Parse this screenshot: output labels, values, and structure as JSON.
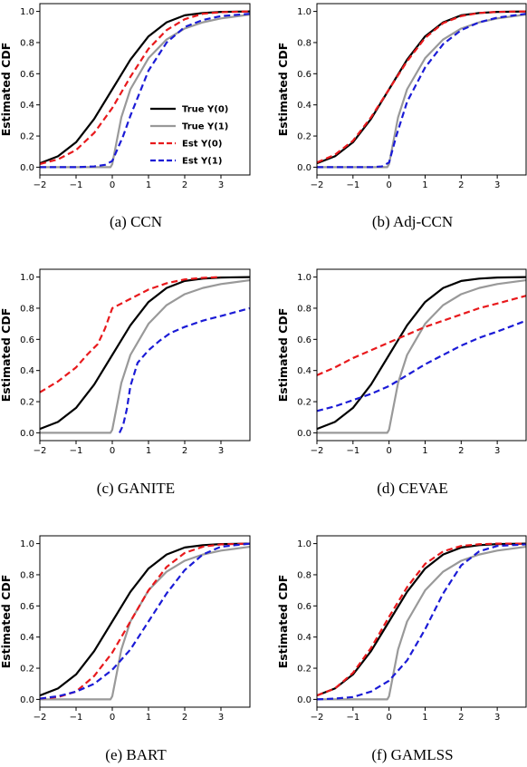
{
  "chart_data": [
    {
      "type": "line",
      "caption": "(a)  CCN",
      "ylabel": "Estimated CDF",
      "xlim": [
        -2,
        3.8
      ],
      "ylim": [
        -0.05,
        1.05
      ],
      "xticks": [
        "−2",
        "−1",
        "0",
        "1",
        "2",
        "3"
      ],
      "yticks": [
        "0.0",
        "0.2",
        "0.4",
        "0.6",
        "0.8",
        "1.0"
      ],
      "grid": false,
      "legend": "center-right",
      "series": [
        {
          "name": "True Y(0)",
          "color": "#000000",
          "dash": "solid",
          "x": [
            -2,
            -1.5,
            -1,
            -0.5,
            0,
            0.5,
            1,
            1.5,
            2,
            2.5,
            3,
            3.8
          ],
          "y": [
            0.025,
            0.07,
            0.16,
            0.31,
            0.5,
            0.69,
            0.84,
            0.93,
            0.975,
            0.99,
            0.997,
            1.0
          ]
        },
        {
          "name": "True Y(1)",
          "color": "#999999",
          "dash": "solid",
          "x": [
            -2,
            -0.05,
            0,
            0.25,
            0.5,
            1,
            1.5,
            2,
            2.5,
            3,
            3.8
          ],
          "y": [
            0,
            0,
            0.02,
            0.32,
            0.5,
            0.7,
            0.82,
            0.89,
            0.93,
            0.955,
            0.98
          ]
        },
        {
          "name": "Est Y(0)",
          "color": "#e8191c",
          "dash": "dashed",
          "x": [
            -2,
            -1.5,
            -1,
            -0.5,
            0,
            0.5,
            1,
            1.5,
            2,
            2.5,
            3,
            3.8
          ],
          "y": [
            0.02,
            0.05,
            0.11,
            0.22,
            0.38,
            0.58,
            0.76,
            0.88,
            0.95,
            0.985,
            0.995,
            1.0
          ]
        },
        {
          "name": "Est Y(1)",
          "color": "#1b1bd6",
          "dash": "dashed",
          "x": [
            -2,
            -1,
            -0.5,
            -0.2,
            0,
            0.3,
            0.5,
            1,
            1.5,
            2,
            2.5,
            3,
            3.8
          ],
          "y": [
            0,
            0,
            0.005,
            0.015,
            0.04,
            0.2,
            0.33,
            0.62,
            0.8,
            0.9,
            0.945,
            0.97,
            0.985
          ]
        }
      ]
    },
    {
      "type": "line",
      "caption": "(b)  Adj-CCN",
      "ylabel": "Estimated CDF",
      "xlim": [
        -2,
        3.8
      ],
      "ylim": [
        -0.05,
        1.05
      ],
      "xticks": [
        "−2",
        "−1",
        "0",
        "1",
        "2",
        "3"
      ],
      "yticks": [
        "0.0",
        "0.2",
        "0.4",
        "0.6",
        "0.8",
        "1.0"
      ],
      "grid": false,
      "series": [
        {
          "name": "True Y(0)",
          "color": "#000000",
          "dash": "solid",
          "x": [
            -2,
            -1.5,
            -1,
            -0.5,
            0,
            0.5,
            1,
            1.5,
            2,
            2.5,
            3,
            3.8
          ],
          "y": [
            0.025,
            0.07,
            0.16,
            0.31,
            0.5,
            0.69,
            0.84,
            0.93,
            0.975,
            0.99,
            0.997,
            1.0
          ]
        },
        {
          "name": "True Y(1)",
          "color": "#999999",
          "dash": "solid",
          "x": [
            -2,
            -0.05,
            0,
            0.25,
            0.5,
            1,
            1.5,
            2,
            2.5,
            3,
            3.8
          ],
          "y": [
            0,
            0,
            0.02,
            0.32,
            0.5,
            0.7,
            0.82,
            0.89,
            0.93,
            0.955,
            0.98
          ]
        },
        {
          "name": "Est Y(0)",
          "color": "#e8191c",
          "dash": "dashed",
          "x": [
            -2,
            -1.5,
            -1,
            -0.5,
            0,
            0.5,
            1,
            1.5,
            2,
            2.5,
            3,
            3.8
          ],
          "y": [
            0.03,
            0.08,
            0.17,
            0.32,
            0.5,
            0.68,
            0.83,
            0.925,
            0.97,
            0.99,
            0.997,
            1.0
          ]
        },
        {
          "name": "Est Y(1)",
          "color": "#1b1bd6",
          "dash": "dashed",
          "x": [
            -2,
            -0.5,
            -0.2,
            0,
            0.2,
            0.5,
            1,
            1.5,
            2,
            2.5,
            3,
            3.8
          ],
          "y": [
            0,
            0,
            0.005,
            0.03,
            0.2,
            0.42,
            0.64,
            0.79,
            0.88,
            0.93,
            0.96,
            0.985
          ]
        }
      ]
    },
    {
      "type": "line",
      "caption": "(c)  GANITE",
      "ylabel": "Estimated CDF",
      "xlim": [
        -2,
        3.8
      ],
      "ylim": [
        -0.05,
        1.05
      ],
      "xticks": [
        "−2",
        "−1",
        "0",
        "1",
        "2",
        "3"
      ],
      "yticks": [
        "0.0",
        "0.2",
        "0.4",
        "0.6",
        "0.8",
        "1.0"
      ],
      "grid": false,
      "series": [
        {
          "name": "True Y(0)",
          "color": "#000000",
          "dash": "solid",
          "x": [
            -2,
            -1.5,
            -1,
            -0.5,
            0,
            0.5,
            1,
            1.5,
            2,
            2.5,
            3,
            3.8
          ],
          "y": [
            0.025,
            0.07,
            0.16,
            0.31,
            0.5,
            0.69,
            0.84,
            0.93,
            0.975,
            0.99,
            0.997,
            1.0
          ]
        },
        {
          "name": "True Y(1)",
          "color": "#999999",
          "dash": "solid",
          "x": [
            -2,
            -0.05,
            0,
            0.25,
            0.5,
            1,
            1.5,
            2,
            2.5,
            3,
            3.8
          ],
          "y": [
            0,
            0,
            0.02,
            0.32,
            0.5,
            0.7,
            0.82,
            0.89,
            0.93,
            0.955,
            0.98
          ]
        },
        {
          "name": "Est Y(0)",
          "color": "#e8191c",
          "dash": "dashed",
          "x": [
            -2,
            -1.5,
            -1,
            -0.7,
            -0.4,
            -0.2,
            0,
            0.5,
            1,
            1.5,
            2,
            2.5,
            3
          ],
          "y": [
            0.26,
            0.33,
            0.42,
            0.5,
            0.57,
            0.67,
            0.8,
            0.86,
            0.92,
            0.96,
            0.985,
            0.995,
            1.0
          ]
        },
        {
          "name": "Est Y(1)",
          "color": "#1b1bd6",
          "dash": "dashed",
          "x": [
            0.2,
            0.3,
            0.4,
            0.5,
            0.7,
            1,
            1.3,
            1.6,
            2,
            2.5,
            3,
            3.8
          ],
          "y": [
            0,
            0.05,
            0.15,
            0.3,
            0.45,
            0.53,
            0.59,
            0.64,
            0.68,
            0.72,
            0.75,
            0.8
          ]
        }
      ]
    },
    {
      "type": "line",
      "caption": "(d)  CEVAE",
      "ylabel": "Estimated CDF",
      "xlim": [
        -2,
        3.8
      ],
      "ylim": [
        -0.05,
        1.05
      ],
      "xticks": [
        "−2",
        "−1",
        "0",
        "1",
        "2",
        "3"
      ],
      "yticks": [
        "0.0",
        "0.2",
        "0.4",
        "0.6",
        "0.8",
        "1.0"
      ],
      "grid": false,
      "series": [
        {
          "name": "True Y(0)",
          "color": "#000000",
          "dash": "solid",
          "x": [
            -2,
            -1.5,
            -1,
            -0.5,
            0,
            0.5,
            1,
            1.5,
            2,
            2.5,
            3,
            3.8
          ],
          "y": [
            0.025,
            0.07,
            0.16,
            0.31,
            0.5,
            0.69,
            0.84,
            0.93,
            0.975,
            0.99,
            0.997,
            1.0
          ]
        },
        {
          "name": "True Y(1)",
          "color": "#999999",
          "dash": "solid",
          "x": [
            -2,
            -0.05,
            0,
            0.25,
            0.5,
            1,
            1.5,
            2,
            2.5,
            3,
            3.8
          ],
          "y": [
            0,
            0,
            0.02,
            0.32,
            0.5,
            0.7,
            0.82,
            0.89,
            0.93,
            0.955,
            0.98
          ]
        },
        {
          "name": "Est Y(0)",
          "color": "#e8191c",
          "dash": "dashed",
          "x": [
            -2,
            -1.5,
            -1,
            -0.5,
            0,
            0.5,
            1,
            1.5,
            2,
            2.5,
            3,
            3.8
          ],
          "y": [
            0.37,
            0.42,
            0.48,
            0.53,
            0.58,
            0.63,
            0.68,
            0.72,
            0.76,
            0.8,
            0.83,
            0.88
          ]
        },
        {
          "name": "Est Y(1)",
          "color": "#1b1bd6",
          "dash": "dashed",
          "x": [
            -2,
            -1.5,
            -1,
            -0.5,
            0,
            0.5,
            1,
            1.5,
            2,
            2.5,
            3,
            3.8
          ],
          "y": [
            0.14,
            0.17,
            0.21,
            0.25,
            0.3,
            0.37,
            0.44,
            0.5,
            0.56,
            0.61,
            0.65,
            0.72
          ]
        }
      ]
    },
    {
      "type": "line",
      "caption": "(e)  BART",
      "ylabel": "Estimated CDF",
      "xlim": [
        -2,
        3.8
      ],
      "ylim": [
        -0.05,
        1.05
      ],
      "xticks": [
        "−2",
        "−1",
        "0",
        "1",
        "2",
        "3"
      ],
      "yticks": [
        "0.0",
        "0.2",
        "0.4",
        "0.6",
        "0.8",
        "1.0"
      ],
      "grid": false,
      "series": [
        {
          "name": "True Y(0)",
          "color": "#000000",
          "dash": "solid",
          "x": [
            -2,
            -1.5,
            -1,
            -0.5,
            0,
            0.5,
            1,
            1.5,
            2,
            2.5,
            3,
            3.8
          ],
          "y": [
            0.025,
            0.07,
            0.16,
            0.31,
            0.5,
            0.69,
            0.84,
            0.93,
            0.975,
            0.99,
            0.997,
            1.0
          ]
        },
        {
          "name": "True Y(1)",
          "color": "#999999",
          "dash": "solid",
          "x": [
            -2,
            -0.05,
            0,
            0.25,
            0.5,
            1,
            1.5,
            2,
            2.5,
            3,
            3.8
          ],
          "y": [
            0,
            0,
            0.02,
            0.32,
            0.5,
            0.7,
            0.82,
            0.89,
            0.93,
            0.955,
            0.98
          ]
        },
        {
          "name": "Est Y(0)",
          "color": "#e8191c",
          "dash": "dashed",
          "x": [
            -2,
            -1.5,
            -1,
            -0.5,
            0,
            0.5,
            1,
            1.5,
            2,
            2.5,
            3,
            3.8
          ],
          "y": [
            0.005,
            0.015,
            0.05,
            0.15,
            0.3,
            0.5,
            0.7,
            0.85,
            0.94,
            0.98,
            0.995,
            1.0
          ]
        },
        {
          "name": "Est Y(1)",
          "color": "#1b1bd6",
          "dash": "dashed",
          "x": [
            -2,
            -1.5,
            -1,
            -0.5,
            0,
            0.5,
            1,
            1.5,
            2,
            2.5,
            3,
            3.8
          ],
          "y": [
            0.005,
            0.02,
            0.05,
            0.1,
            0.19,
            0.32,
            0.5,
            0.68,
            0.83,
            0.93,
            0.98,
            1.0
          ]
        }
      ]
    },
    {
      "type": "line",
      "caption": "(f)  GAMLSS",
      "ylabel": "Estimated CDF",
      "xlim": [
        -2,
        3.8
      ],
      "ylim": [
        -0.05,
        1.05
      ],
      "xticks": [
        "−2",
        "−1",
        "0",
        "1",
        "2",
        "3"
      ],
      "yticks": [
        "0.0",
        "0.2",
        "0.4",
        "0.6",
        "0.8",
        "1.0"
      ],
      "grid": false,
      "series": [
        {
          "name": "True Y(0)",
          "color": "#000000",
          "dash": "solid",
          "x": [
            -2,
            -1.5,
            -1,
            -0.5,
            0,
            0.5,
            1,
            1.5,
            2,
            2.5,
            3,
            3.8
          ],
          "y": [
            0.025,
            0.07,
            0.16,
            0.31,
            0.5,
            0.69,
            0.84,
            0.93,
            0.975,
            0.99,
            0.997,
            1.0
          ]
        },
        {
          "name": "True Y(1)",
          "color": "#999999",
          "dash": "solid",
          "x": [
            -2,
            -0.05,
            0,
            0.25,
            0.5,
            1,
            1.5,
            2,
            2.5,
            3,
            3.8
          ],
          "y": [
            0,
            0,
            0.02,
            0.32,
            0.5,
            0.7,
            0.82,
            0.89,
            0.93,
            0.955,
            0.98
          ]
        },
        {
          "name": "Est Y(0)",
          "color": "#e8191c",
          "dash": "dashed",
          "x": [
            -2,
            -1.5,
            -1,
            -0.5,
            0,
            0.5,
            1,
            1.5,
            2,
            2.5,
            3,
            3.8
          ],
          "y": [
            0.025,
            0.07,
            0.17,
            0.33,
            0.53,
            0.72,
            0.87,
            0.95,
            0.985,
            0.996,
            1.0,
            1.0
          ]
        },
        {
          "name": "Est Y(1)",
          "color": "#1b1bd6",
          "dash": "dashed",
          "x": [
            -2,
            -1.5,
            -1,
            -0.5,
            0,
            0.5,
            1,
            1.5,
            2,
            2.5,
            3,
            3.8
          ],
          "y": [
            0,
            0.005,
            0.015,
            0.05,
            0.12,
            0.25,
            0.45,
            0.68,
            0.86,
            0.95,
            0.985,
            0.995
          ]
        }
      ]
    }
  ]
}
